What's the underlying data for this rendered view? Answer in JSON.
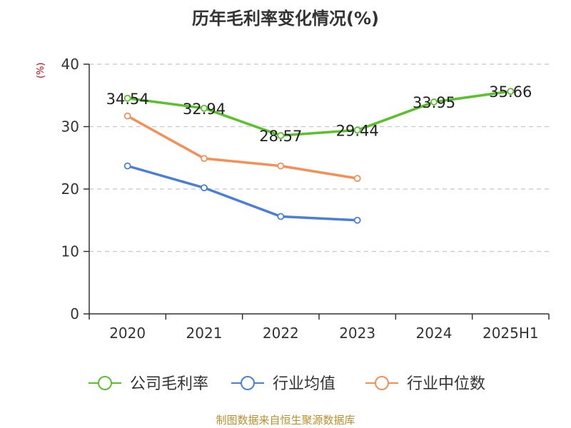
{
  "title": "历年毛利率变化情况(%)",
  "unit_label": "(%)",
  "source": "制图数据来自恒生聚源数据库",
  "chart_data": {
    "type": "line",
    "title": "历年毛利率变化情况(%)",
    "ylabel": "(%)",
    "categories": [
      "2020",
      "2021",
      "2022",
      "2023",
      "2024",
      "2025H1"
    ],
    "ylim": [
      0,
      40
    ],
    "yticks": [
      0,
      10,
      20,
      30,
      40
    ],
    "grid": true,
    "legend_position": "bottom",
    "series": [
      {
        "name": "公司毛利率",
        "color": "#5ac12d",
        "show_labels": true,
        "values": [
          34.54,
          32.94,
          28.57,
          29.44,
          33.95,
          35.66
        ]
      },
      {
        "name": "行业均值",
        "color": "#4a7fd8",
        "show_labels": false,
        "values": [
          23.7,
          20.2,
          15.6,
          15.0,
          null,
          null
        ]
      },
      {
        "name": "行业中位数",
        "color": "#f58f55",
        "show_labels": false,
        "values": [
          31.7,
          24.9,
          23.7,
          21.7,
          null,
          null
        ]
      }
    ],
    "data_labels": [
      "34.54",
      "32.94",
      "28.57",
      "29.44",
      "33.95",
      "35.66"
    ]
  }
}
